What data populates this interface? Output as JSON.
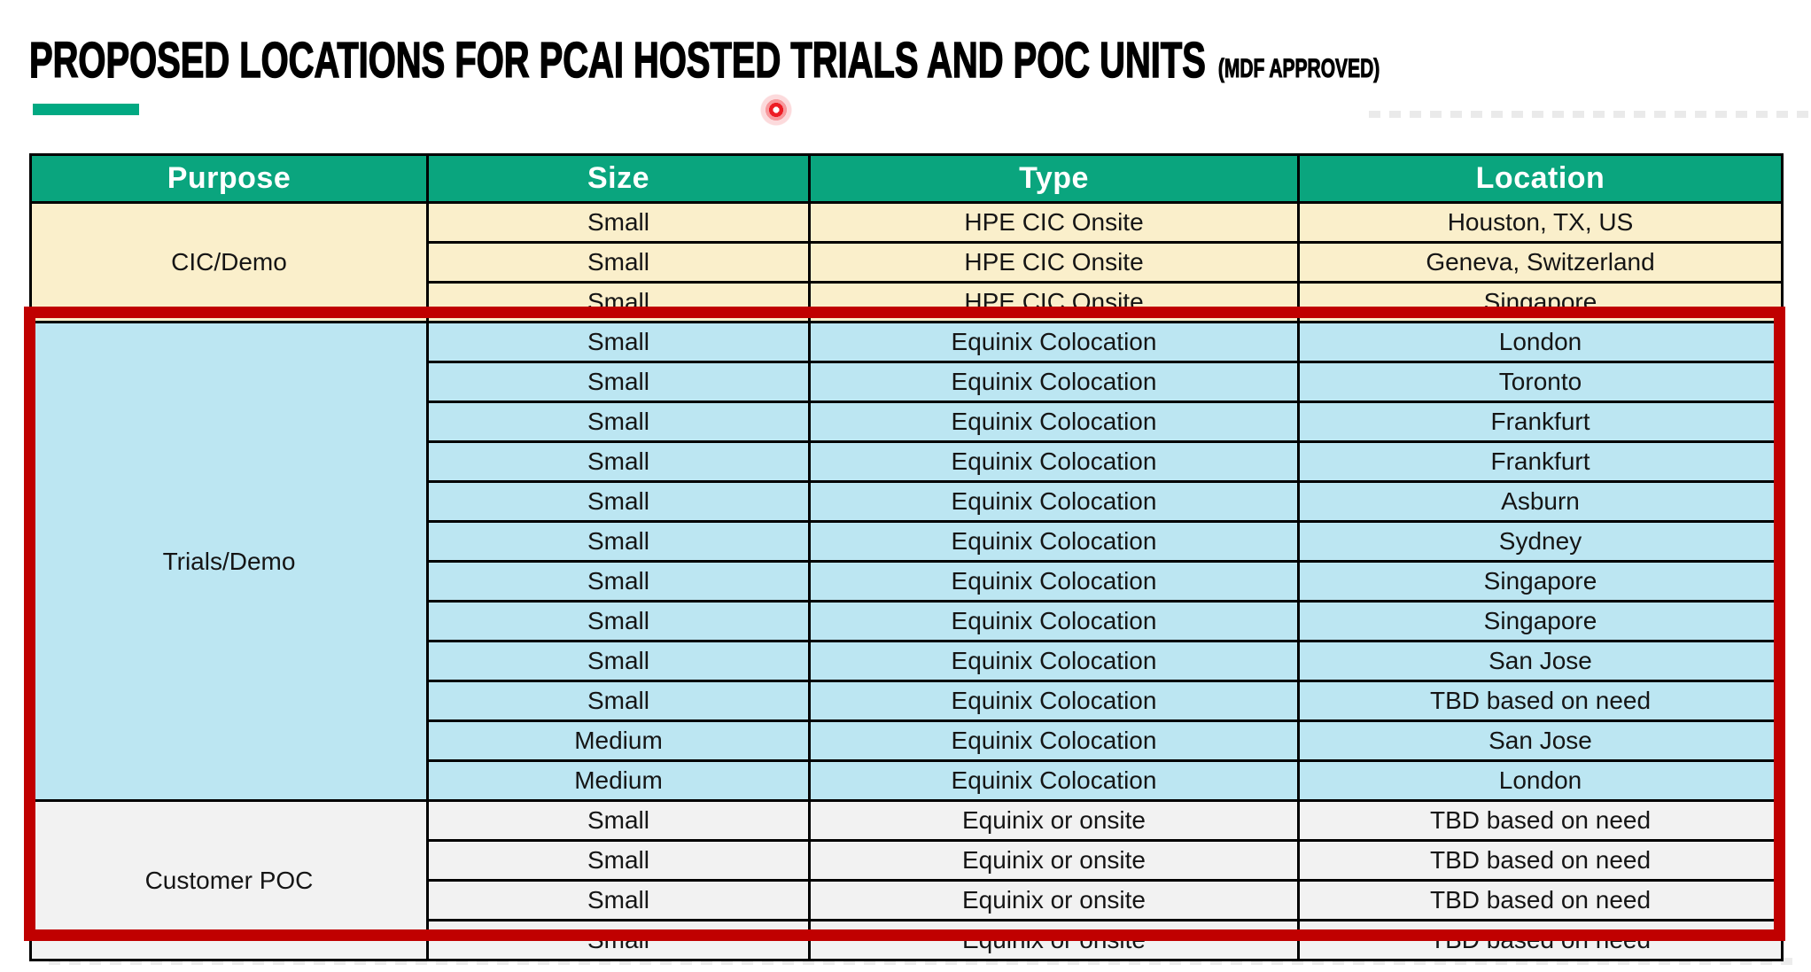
{
  "slide": {
    "title": "PROPOSED LOCATIONS FOR PCAI HOSTED TRIALS AND POC UNITS",
    "title_suffix": "(MDF APPROVED)"
  },
  "table": {
    "columns": [
      "Purpose",
      "Size",
      "Type",
      "Location"
    ],
    "groups": [
      {
        "purpose": "CIC/Demo",
        "bg": "#FAEFCB",
        "rows": [
          {
            "size": "Small",
            "type": "HPE CIC Onsite",
            "location": "Houston, TX, US"
          },
          {
            "size": "Small",
            "type": "HPE CIC Onsite",
            "location": "Geneva, Switzerland"
          },
          {
            "size": "Small",
            "type": "HPE CIC Onsite",
            "location": "Singapore"
          }
        ]
      },
      {
        "purpose": "Trials/Demo",
        "bg": "#BCE6F2",
        "rows": [
          {
            "size": "Small",
            "type": "Equinix Colocation",
            "location": "London"
          },
          {
            "size": "Small",
            "type": "Equinix Colocation",
            "location": "Toronto"
          },
          {
            "size": "Small",
            "type": "Equinix Colocation",
            "location": "Frankfurt"
          },
          {
            "size": "Small",
            "type": "Equinix Colocation",
            "location": "Frankfurt"
          },
          {
            "size": "Small",
            "type": "Equinix Colocation",
            "location": "Asburn"
          },
          {
            "size": "Small",
            "type": "Equinix Colocation",
            "location": "Sydney"
          },
          {
            "size": "Small",
            "type": "Equinix Colocation",
            "location": "Singapore"
          },
          {
            "size": "Small",
            "type": "Equinix Colocation",
            "location": "Singapore"
          },
          {
            "size": "Small",
            "type": "Equinix Colocation",
            "location": "San Jose"
          },
          {
            "size": "Small",
            "type": "Equinix Colocation",
            "location": "TBD based on need"
          },
          {
            "size": "Medium",
            "type": "Equinix Colocation",
            "location": "San Jose"
          },
          {
            "size": "Medium",
            "type": "Equinix Colocation",
            "location": "London"
          }
        ]
      },
      {
        "purpose": "Customer POC",
        "bg": "#F2F2F2",
        "rows": [
          {
            "size": "Small",
            "type": "Equinix or onsite",
            "location": "TBD based on need"
          },
          {
            "size": "Small",
            "type": "Equinix or onsite",
            "location": "TBD based on need"
          },
          {
            "size": "Small",
            "type": "Equinix or onsite",
            "location": "TBD based on need"
          },
          {
            "size": "Small",
            "type": "Equinix or onsite",
            "location": "TBD based on need"
          }
        ]
      }
    ]
  },
  "colors": {
    "accent_green": "#01A982",
    "header_bg": "#0AA57E",
    "highlight_red": "#C00000",
    "laser_red": "#ED1C24",
    "cic_row_bg": "#FAEFCB",
    "trials_row_bg": "#BCE6F2",
    "poc_row_bg": "#F2F2F2"
  }
}
